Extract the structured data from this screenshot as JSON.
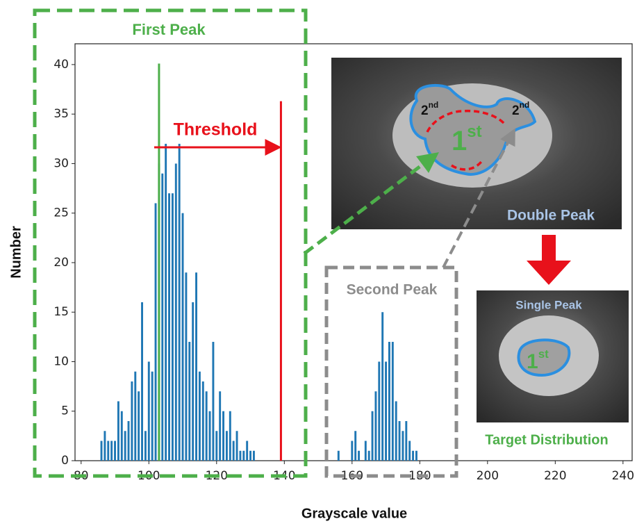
{
  "chart_data": {
    "type": "bar",
    "x_label": "Grayscale value",
    "y_label": "Number",
    "xlim": [
      78.2,
      242.7
    ],
    "ylim": [
      0,
      42.1
    ],
    "xticks": [
      80,
      100,
      120,
      140,
      160,
      180,
      200,
      220,
      240
    ],
    "yticks": [
      0,
      5,
      10,
      15,
      20,
      25,
      30,
      35,
      40
    ],
    "series": [
      {
        "color": "#1f77b4",
        "x": [
          86,
          87,
          88,
          89,
          90,
          91,
          92,
          93,
          94,
          95,
          96,
          97,
          98,
          99,
          100,
          101,
          102,
          103,
          104,
          105,
          106,
          107,
          108,
          109,
          110,
          111,
          112,
          113,
          114,
          115,
          116,
          117,
          118,
          119,
          120,
          121,
          122,
          123,
          124,
          125,
          126,
          127,
          128,
          129,
          130,
          131,
          156,
          160,
          161,
          162,
          164,
          165,
          166,
          167,
          168,
          169,
          170,
          171,
          172,
          173,
          174,
          175,
          176,
          177,
          178,
          179
        ],
        "values": [
          2,
          3,
          2,
          2,
          2,
          6,
          5,
          3,
          4,
          8,
          9,
          7,
          16,
          3,
          10,
          9,
          26,
          30,
          29,
          32,
          27,
          27,
          30,
          32,
          25,
          19,
          12,
          16,
          19,
          9,
          8,
          7,
          5,
          12,
          3,
          7,
          5,
          3,
          5,
          2,
          3,
          1,
          1,
          2,
          1,
          1,
          1,
          2,
          3,
          1,
          2,
          1,
          5,
          7,
          10,
          15,
          10,
          12,
          12,
          6,
          4,
          3,
          4,
          2,
          1,
          1
        ]
      }
    ],
    "peak_line": {
      "x": 103,
      "value": 40.1,
      "color": "#4daf4a"
    },
    "threshold_line": {
      "x": 139,
      "value": 36.3,
      "color": "#e8111b"
    },
    "annotations": {
      "first_peak": "First Peak",
      "threshold": "Threshold",
      "second_peak": "Second Peak",
      "double_peak": "Double Peak",
      "single_peak": "Single Peak",
      "target": "Target Distribution"
    },
    "image_labels": {
      "first": {
        "base": "1",
        "sup": "st"
      },
      "second_left": {
        "base": "2",
        "sup": "nd"
      },
      "second_right": {
        "base": "2",
        "sup": "nd"
      },
      "first_small": {
        "base": "1",
        "sup": "st"
      }
    }
  }
}
